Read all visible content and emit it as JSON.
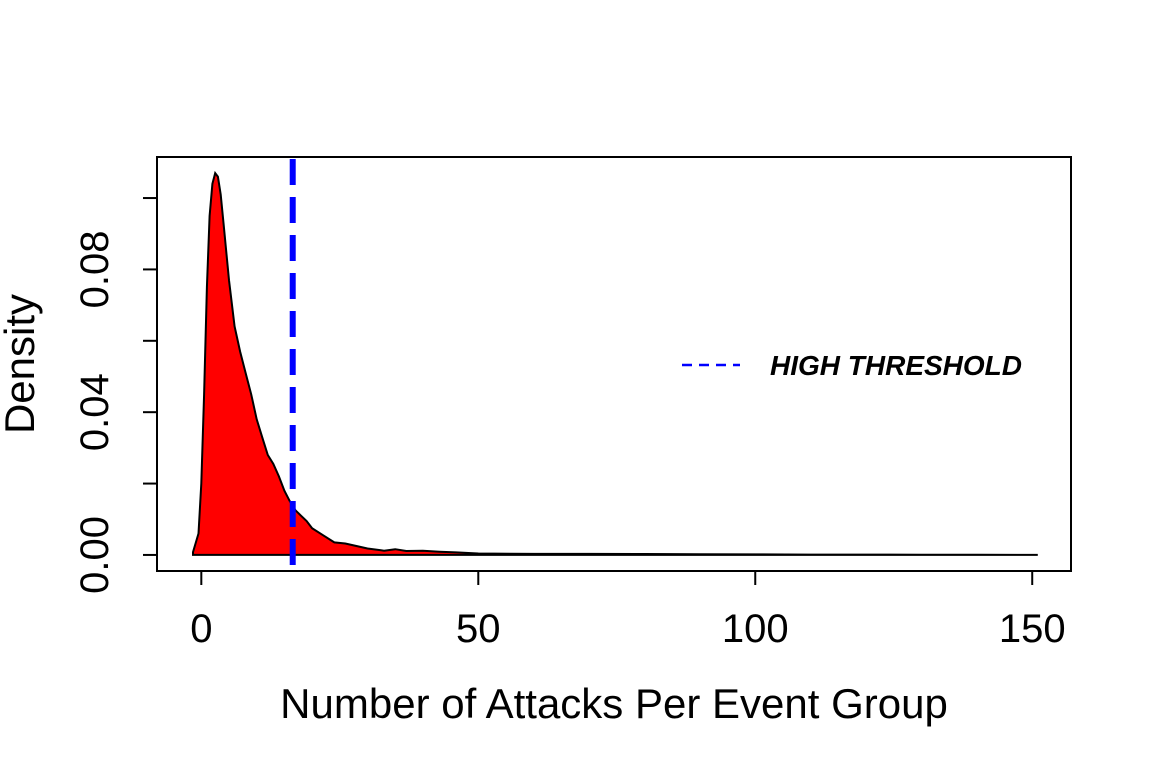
{
  "chart_data": {
    "type": "area",
    "title": "",
    "xlabel": "Number of Attacks Per Event Group",
    "ylabel": "Density",
    "xlim": [
      -8,
      157
    ],
    "ylim": [
      -0.0045,
      0.1115
    ],
    "x_ticks": [
      0,
      50,
      100,
      150
    ],
    "x_tick_labels": [
      "0",
      "50",
      "100",
      "150"
    ],
    "y_ticks": [
      0.0,
      0.02,
      0.04,
      0.06,
      0.08,
      0.1
    ],
    "y_tick_labels": [
      "0.00",
      "",
      "0.04",
      "",
      "0.08",
      ""
    ],
    "series": [
      {
        "fill": "#ff0000",
        "stroke": "#000000",
        "points": [
          [
            -1.5,
            0.0008
          ],
          [
            -0.5,
            0.006
          ],
          [
            0.0,
            0.02
          ],
          [
            0.5,
            0.045
          ],
          [
            1.0,
            0.075
          ],
          [
            1.5,
            0.095
          ],
          [
            2.0,
            0.104
          ],
          [
            2.5,
            0.107
          ],
          [
            3.0,
            0.106
          ],
          [
            3.5,
            0.101
          ],
          [
            4.0,
            0.093
          ],
          [
            5.0,
            0.077
          ],
          [
            6.0,
            0.064
          ],
          [
            7.0,
            0.057
          ],
          [
            8.0,
            0.051
          ],
          [
            9.0,
            0.045
          ],
          [
            10.0,
            0.038
          ],
          [
            11.0,
            0.033
          ],
          [
            12.0,
            0.028
          ],
          [
            13.0,
            0.0255
          ],
          [
            14.0,
            0.022
          ],
          [
            15.0,
            0.018
          ],
          [
            16.0,
            0.015
          ],
          [
            17.0,
            0.0125
          ],
          [
            18.0,
            0.011
          ],
          [
            19.0,
            0.0095
          ],
          [
            20.0,
            0.0075
          ],
          [
            22.0,
            0.0055
          ],
          [
            24.0,
            0.0035
          ],
          [
            26.0,
            0.0032
          ],
          [
            28.0,
            0.0025
          ],
          [
            30.0,
            0.0018
          ],
          [
            33.0,
            0.0012
          ],
          [
            35.0,
            0.0016
          ],
          [
            37.0,
            0.0011
          ],
          [
            40.0,
            0.0012
          ],
          [
            43.0,
            0.0009
          ],
          [
            46.0,
            0.0007
          ],
          [
            50.0,
            0.0004
          ],
          [
            60.0,
            0.0003
          ],
          [
            70.0,
            0.0003
          ],
          [
            80.0,
            0.00025
          ],
          [
            90.0,
            0.0002
          ],
          [
            100.0,
            0.00015
          ],
          [
            110.0,
            0.0001
          ],
          [
            120.0,
            0.0001
          ],
          [
            130.0,
            8e-05
          ],
          [
            140.0,
            5e-05
          ],
          [
            151.0,
            0.0
          ]
        ]
      }
    ],
    "threshold": {
      "x": 16.5,
      "color": "#0000ff",
      "style": "dashed",
      "label": "HIGH THRESHOLD"
    },
    "legend": {
      "placement": "right",
      "entries": [
        {
          "label": "HIGH THRESHOLD",
          "color": "#0000ff",
          "style": "dashed"
        }
      ]
    },
    "grid": false
  }
}
